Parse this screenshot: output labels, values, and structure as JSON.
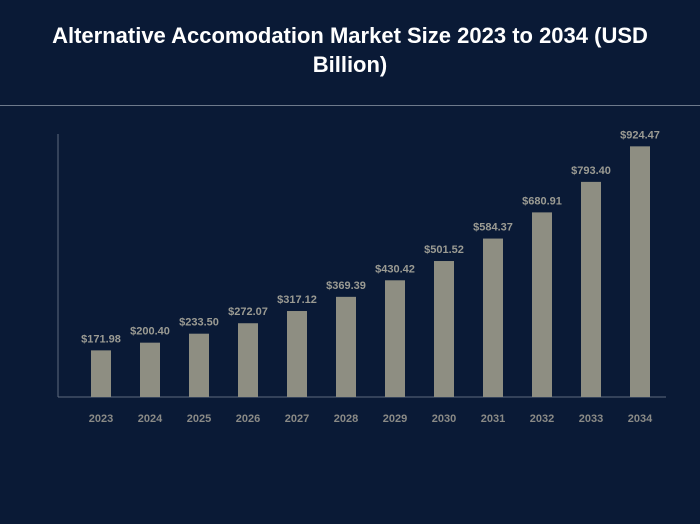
{
  "header": {
    "title": "Alternative Accomodation Market Size 2023 to 2034 (USD Billion)"
  },
  "colors": {
    "background": "#0a1a36",
    "bar": "#8e8e82",
    "title": "#ffffff"
  },
  "chart_data": {
    "type": "bar",
    "title": "Alternative Accomodation Market Size 2023 to 2034 (USD Billion)",
    "categories": [
      "2023",
      "2024",
      "2025",
      "2026",
      "2027",
      "2028",
      "2029",
      "2030",
      "2031",
      "2032",
      "2033",
      "2034"
    ],
    "values": [
      171.98,
      200.4,
      233.5,
      272.07,
      317.12,
      369.39,
      430.42,
      501.52,
      584.37,
      680.91,
      793.4,
      924.47
    ],
    "value_labels": [
      "$171.98",
      "$200.40",
      "$233.50",
      "$272.07",
      "$317.12",
      "$369.39",
      "$430.42",
      "$501.52",
      "$584.37",
      "$680.91",
      "$793.40",
      "$924.47"
    ],
    "xlabel": "",
    "ylabel": "",
    "ylim": [
      0,
      970
    ],
    "grid": false,
    "legend": "none"
  }
}
